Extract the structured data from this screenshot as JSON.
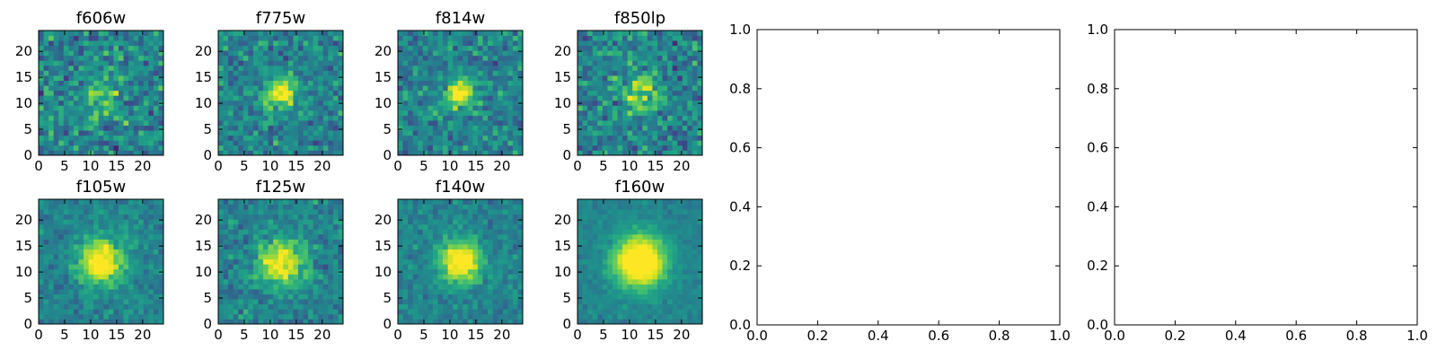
{
  "figure": {
    "background": "#ffffff",
    "colormap": "viridis"
  },
  "chart_data": [
    {
      "type": "heatmap",
      "title": "f606w",
      "xlim": [
        0,
        24
      ],
      "ylim": [
        0,
        24
      ],
      "xticks": [
        "0",
        "5",
        "10",
        "15",
        "20"
      ],
      "yticks": [
        "0",
        "5",
        "10",
        "15",
        "20"
      ],
      "center": [
        12,
        12
      ],
      "peak_sigma": 3.0,
      "peak_strength": 0.25,
      "noise": 0.35,
      "seed": 11,
      "description_levels": "noisy, weak central source"
    },
    {
      "type": "heatmap",
      "title": "f775w",
      "xlim": [
        0,
        24
      ],
      "ylim": [
        0,
        24
      ],
      "xticks": [
        "0",
        "5",
        "10",
        "15",
        "20"
      ],
      "yticks": [
        "0",
        "5",
        "10",
        "15",
        "20"
      ],
      "center": [
        12,
        12
      ],
      "peak_sigma": 2.2,
      "peak_strength": 0.55,
      "noise": 0.28,
      "seed": 23
    },
    {
      "type": "heatmap",
      "title": "f814w",
      "xlim": [
        0,
        24
      ],
      "ylim": [
        0,
        24
      ],
      "xticks": [
        "0",
        "5",
        "10",
        "15",
        "20"
      ],
      "yticks": [
        "0",
        "5",
        "10",
        "15",
        "20"
      ],
      "center": [
        12,
        12
      ],
      "peak_sigma": 2.0,
      "peak_strength": 0.6,
      "noise": 0.28,
      "seed": 37
    },
    {
      "type": "heatmap",
      "title": "f850lp",
      "xlim": [
        0,
        24
      ],
      "ylim": [
        0,
        24
      ],
      "xticks": [
        "0",
        "5",
        "10",
        "15",
        "20"
      ],
      "yticks": [
        "0",
        "5",
        "10",
        "15",
        "20"
      ],
      "center": [
        12,
        12
      ],
      "peak_sigma": 2.5,
      "peak_strength": 0.4,
      "noise": 0.32,
      "seed": 41
    },
    {
      "type": "heatmap",
      "title": "f105w",
      "xlim": [
        0,
        24
      ],
      "ylim": [
        0,
        24
      ],
      "xticks": [
        "0",
        "5",
        "10",
        "15",
        "20"
      ],
      "yticks": [
        "0",
        "5",
        "10",
        "15",
        "20"
      ],
      "center": [
        12,
        12
      ],
      "peak_sigma": 3.0,
      "peak_strength": 0.7,
      "noise": 0.18,
      "seed": 53
    },
    {
      "type": "heatmap",
      "title": "f125w",
      "xlim": [
        0,
        24
      ],
      "ylim": [
        0,
        24
      ],
      "xticks": [
        "0",
        "5",
        "10",
        "15",
        "20"
      ],
      "yticks": [
        "0",
        "5",
        "10",
        "15",
        "20"
      ],
      "center": [
        12,
        12
      ],
      "peak_sigma": 3.2,
      "peak_strength": 0.6,
      "noise": 0.22,
      "seed": 67
    },
    {
      "type": "heatmap",
      "title": "f140w",
      "xlim": [
        0,
        24
      ],
      "ylim": [
        0,
        24
      ],
      "xticks": [
        "0",
        "5",
        "10",
        "15",
        "20"
      ],
      "yticks": [
        "0",
        "5",
        "10",
        "15",
        "20"
      ],
      "center": [
        12,
        12
      ],
      "peak_sigma": 2.8,
      "peak_strength": 0.7,
      "noise": 0.17,
      "seed": 79
    },
    {
      "type": "heatmap",
      "title": "f160w",
      "xlim": [
        0,
        24
      ],
      "ylim": [
        0,
        24
      ],
      "xticks": [
        "0",
        "5",
        "10",
        "15",
        "20"
      ],
      "yticks": [
        "0",
        "5",
        "10",
        "15",
        "20"
      ],
      "center": [
        12,
        12
      ],
      "peak_sigma": 3.5,
      "peak_strength": 0.85,
      "noise": 0.1,
      "seed": 97
    },
    {
      "type": "scatter",
      "title": "",
      "xlim": [
        0.0,
        1.0
      ],
      "ylim": [
        0.0,
        1.0
      ],
      "xticks": [
        "0.0",
        "0.2",
        "0.4",
        "0.6",
        "0.8",
        "1.0"
      ],
      "yticks": [
        "0.0",
        "0.2",
        "0.4",
        "0.6",
        "0.8",
        "1.0"
      ],
      "series": []
    },
    {
      "type": "scatter",
      "title": "",
      "xlim": [
        0.0,
        1.0
      ],
      "ylim": [
        0.0,
        1.0
      ],
      "xticks": [
        "0.0",
        "0.2",
        "0.4",
        "0.6",
        "0.8",
        "1.0"
      ],
      "yticks": [
        "0.0",
        "0.2",
        "0.4",
        "0.6",
        "0.8",
        "1.0"
      ],
      "series": []
    }
  ]
}
